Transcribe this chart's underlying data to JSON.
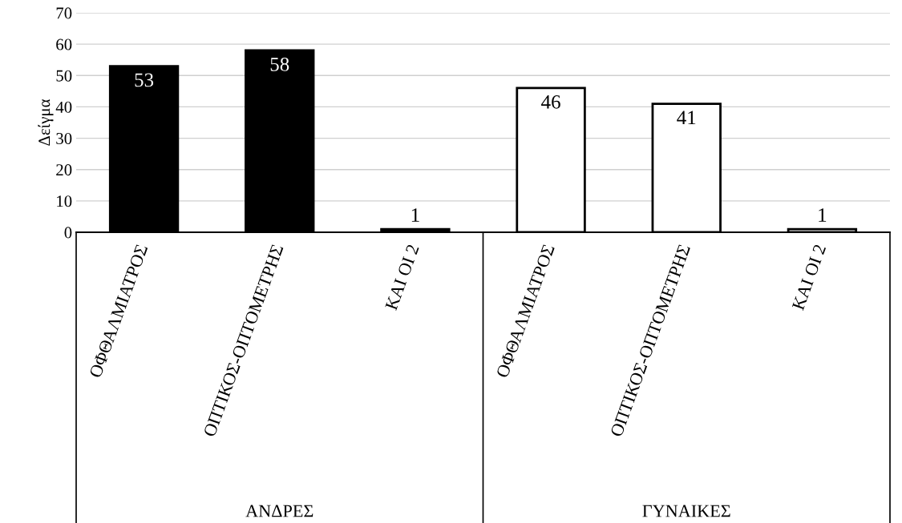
{
  "chart_data": {
    "type": "bar",
    "ylabel": "Δείγμα",
    "categories": [
      "ΟΦΘΑΛΜΙΑΤΡΟΣ",
      "ΟΠΤΙΚΟΣ-ΟΠΤΟΜΕΤΡΗΣ",
      "ΚΑΙ ΟΙ 2",
      "ΟΦΘΑΛΜΙΑΤΡΟΣ",
      "ΟΠΤΙΚΟΣ-ΟΠΤΟΜΕΤΡΗΣ",
      "ΚΑΙ ΟΙ 2"
    ],
    "values": [
      53,
      58,
      1,
      46,
      41,
      1
    ],
    "colors": [
      "#000000",
      "#000000",
      "#000000",
      "#ffffff",
      "#ffffff",
      "#ffffff"
    ],
    "annotations": [
      "ΑΝΔΡΕΣ",
      "ΓΥΝΑΙΚΕΣ"
    ],
    "ylim": [
      0,
      70
    ],
    "yticks": [
      0,
      10,
      20,
      30,
      40,
      50,
      60,
      70
    ],
    "grid": "y",
    "data_labels": true
  }
}
